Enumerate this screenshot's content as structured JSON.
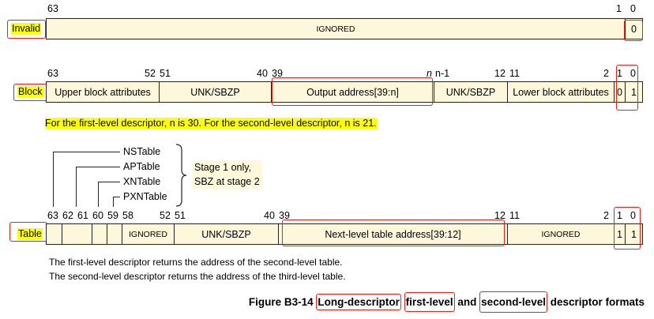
{
  "invalid": {
    "label": "Invalid",
    "bits": [
      "63",
      "1",
      "0"
    ],
    "fields": [
      "IGNORED",
      "0"
    ]
  },
  "block": {
    "label": "Block",
    "bits": [
      "63",
      "52",
      "51",
      "40",
      "39",
      "n",
      "n-1",
      "12",
      "11",
      "2",
      "1",
      "0"
    ],
    "fields": [
      "Upper block attributes",
      "UNK/SBZP",
      "Output address[39:n]",
      "UNK/SBZP",
      "Lower block attributes",
      "0",
      "1"
    ]
  },
  "note": "For the first-level descriptor, n is 30. For the second-level descriptor, n is 21.",
  "table": {
    "label": "Table",
    "bits": [
      "63",
      "62",
      "61",
      "60",
      "59",
      "58",
      "52",
      "51",
      "40",
      "39",
      "12",
      "11",
      "2",
      "1",
      "0"
    ],
    "fields": [
      "IGNORED",
      "UNK/SBZP",
      "Next-level table address[39:12]",
      "IGNORED",
      "1",
      "1"
    ],
    "flags": [
      "NSTable",
      "APTable",
      "XNTable",
      "PXNTable"
    ],
    "stage_note": [
      "Stage 1 only,",
      "SBZ at stage 2"
    ]
  },
  "footer": [
    "The first-level descriptor returns the address of the second-level table.",
    "The second-level descriptor returns the address of the third-level table."
  ],
  "caption": {
    "prefix": "Figure B3-14 ",
    "p1": "Long-descriptor",
    "p2": "first-level",
    "p3": " and ",
    "p4": "second-level",
    "p5": " descriptor formats"
  },
  "colors": {
    "field_fill": "#fdf8dc",
    "highlight": "#ffff00",
    "annotation_box": "#e0261e"
  }
}
